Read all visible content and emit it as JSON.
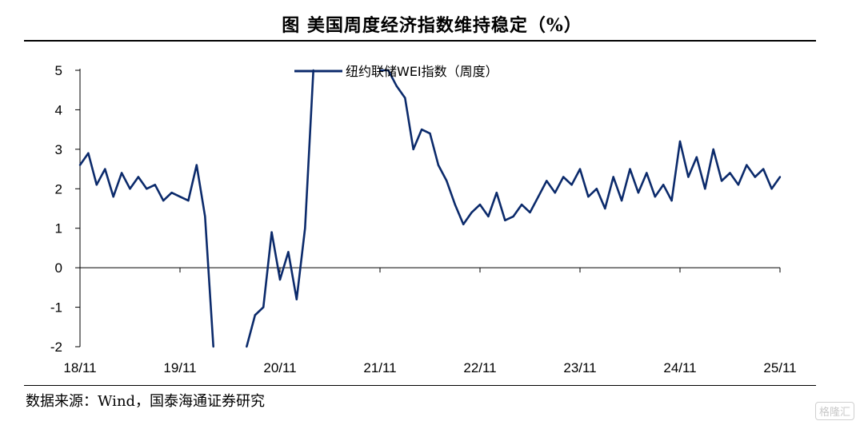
{
  "title": "图  美国周度经济指数维持稳定（%）",
  "source": "数据来源：Wind，国泰海通证券研究",
  "watermark": "格隆汇",
  "colors": {
    "series": "#0b2a6b",
    "axis": "#000000"
  },
  "chart_data": {
    "type": "line",
    "title": "图  美国周度经济指数维持稳定（%）",
    "xlabel": "",
    "ylabel": "",
    "ylim": [
      -2,
      5
    ],
    "yticks": [
      5,
      4,
      3,
      2,
      1,
      0,
      -1,
      -2
    ],
    "xtick_labels": [
      "18/11",
      "19/11",
      "20/11",
      "21/11",
      "22/11",
      "23/11",
      "24/11",
      "25/11"
    ],
    "xlim": [
      "2018-11",
      "2025-11"
    ],
    "legend": "top-center",
    "grid": false,
    "series": [
      {
        "name": "纽约联储WEI指数（周度）",
        "x": [
          "2018-11",
          "2018-12",
          "2019-01",
          "2019-02",
          "2019-03",
          "2019-04",
          "2019-05",
          "2019-06",
          "2019-07",
          "2019-08",
          "2019-09",
          "2019-10",
          "2019-11",
          "2019-12",
          "2020-01",
          "2020-02",
          "2020-03",
          "2020-04",
          "2020-05",
          "2020-06",
          "2020-07",
          "2020-08",
          "2020-09",
          "2020-10",
          "2020-11",
          "2020-12",
          "2021-01",
          "2021-02",
          "2021-03",
          "2021-04",
          "2021-05",
          "2021-06",
          "2021-07",
          "2021-08",
          "2021-09",
          "2021-10",
          "2021-11",
          "2021-12",
          "2022-01",
          "2022-02",
          "2022-03",
          "2022-04",
          "2022-05",
          "2022-06",
          "2022-07",
          "2022-08",
          "2022-09",
          "2022-10",
          "2022-11",
          "2022-12",
          "2023-01",
          "2023-02",
          "2023-03",
          "2023-04",
          "2023-05",
          "2023-06",
          "2023-07",
          "2023-08",
          "2023-09",
          "2023-10",
          "2023-11",
          "2023-12",
          "2024-01",
          "2024-02",
          "2024-03",
          "2024-04",
          "2024-05",
          "2024-06",
          "2024-07",
          "2024-08",
          "2024-09",
          "2024-10",
          "2024-11",
          "2024-12",
          "2025-01",
          "2025-02",
          "2025-03",
          "2025-04",
          "2025-05",
          "2025-06",
          "2025-07",
          "2025-08",
          "2025-09",
          "2025-10",
          "2025-11"
        ],
        "values": [
          2.6,
          2.9,
          2.1,
          2.5,
          1.8,
          2.4,
          2.0,
          2.3,
          2.0,
          2.1,
          1.7,
          1.9,
          1.8,
          1.7,
          2.6,
          1.3,
          -2.0,
          null,
          null,
          null,
          -2.0,
          -1.2,
          -1.0,
          0.9,
          -0.3,
          0.4,
          -0.8,
          1.0,
          5.0,
          null,
          null,
          null,
          null,
          null,
          null,
          null,
          5.0,
          5.0,
          4.6,
          4.3,
          3.0,
          3.5,
          3.4,
          2.6,
          2.2,
          1.6,
          1.1,
          1.4,
          1.6,
          1.3,
          1.9,
          1.2,
          1.3,
          1.6,
          1.4,
          1.8,
          2.2,
          1.9,
          2.3,
          2.1,
          2.5,
          1.8,
          2.0,
          1.5,
          2.3,
          1.7,
          2.5,
          1.9,
          2.4,
          1.8,
          2.1,
          1.7,
          3.2,
          2.3,
          2.8,
          2.0,
          3.0,
          2.2,
          2.4,
          2.1,
          2.6,
          2.3,
          2.5,
          2.0,
          2.3
        ]
      }
    ]
  }
}
